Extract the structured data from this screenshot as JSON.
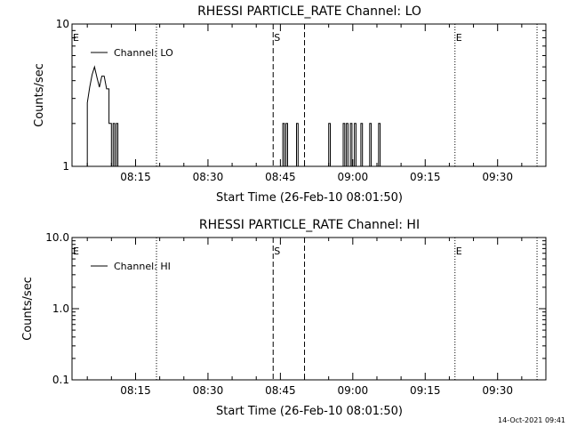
{
  "footer": {
    "timestamp": "14-Oct-2021 09:41"
  },
  "colors": {
    "foreground": "#000000",
    "background": "#ffffff"
  },
  "chart_data": [
    {
      "type": "line",
      "title": "RHESSI PARTICLE_RATE Channel: LO",
      "xlabel": "Start Time (26-Feb-10 08:01:50)",
      "ylabel": "Counts/sec",
      "y_scale": "log",
      "xlim": [
        "08:01:50",
        "09:40:00"
      ],
      "ylim": [
        1,
        10
      ],
      "x_ticks": [
        "08:15",
        "08:30",
        "08:45",
        "09:00",
        "09:15",
        "09:30"
      ],
      "y_ticks": [
        "1",
        "10"
      ],
      "legend": {
        "entries": [
          "Channel: LO"
        ],
        "placement": "top-left"
      },
      "markers": [
        {
          "label": "E",
          "time": "08:01:50",
          "style": "none"
        },
        {
          "label": "",
          "time": "08:19:20",
          "style": "dotted"
        },
        {
          "label": "S",
          "time": "08:43:30",
          "style": "dashed"
        },
        {
          "label": "",
          "time": "08:50:00",
          "style": "dashed"
        },
        {
          "label": "E",
          "time": "09:21:10",
          "style": "dotted"
        },
        {
          "label": "",
          "time": "09:38:10",
          "style": "dotted"
        }
      ],
      "series": [
        {
          "name": "Channel: LO",
          "points": [
            [
              "08:05:00",
              1
            ],
            [
              "08:05:00",
              2.8
            ],
            [
              "08:05:30",
              3.6
            ],
            [
              "08:06:00",
              4.4
            ],
            [
              "08:06:30",
              5.0
            ],
            [
              "08:07:00",
              4.2
            ],
            [
              "08:07:30",
              3.6
            ],
            [
              "08:08:00",
              4.3
            ],
            [
              "08:08:30",
              4.3
            ],
            [
              "08:09:00",
              3.5
            ],
            [
              "08:09:30",
              3.5
            ],
            [
              "08:09:30",
              2.0
            ],
            [
              "08:10:00",
              2.0
            ],
            [
              "08:10:00",
              1
            ],
            [
              "08:10:20",
              1
            ],
            [
              "08:10:20",
              2.0
            ],
            [
              "08:10:40",
              2.0
            ],
            [
              "08:10:40",
              1
            ],
            [
              "08:11:00",
              1
            ],
            [
              "08:11:00",
              2.0
            ],
            [
              "08:11:20",
              2.0
            ],
            [
              "08:11:20",
              1
            ],
            [
              "08:45:30",
              1
            ],
            [
              "08:45:30",
              2.0
            ],
            [
              "08:45:50",
              2.0
            ],
            [
              "08:45:50",
              1
            ],
            [
              "08:46:10",
              1
            ],
            [
              "08:46:10",
              2.0
            ],
            [
              "08:46:30",
              2.0
            ],
            [
              "08:46:30",
              1
            ],
            [
              "08:48:20",
              1
            ],
            [
              "08:48:20",
              2.0
            ],
            [
              "08:48:40",
              2.0
            ],
            [
              "08:48:40",
              1
            ],
            [
              "08:55:00",
              1
            ],
            [
              "08:55:00",
              2.0
            ],
            [
              "08:55:20",
              2.0
            ],
            [
              "08:55:20",
              1
            ],
            [
              "08:58:00",
              1
            ],
            [
              "08:58:00",
              2.0
            ],
            [
              "08:58:20",
              2.0
            ],
            [
              "08:58:20",
              1
            ],
            [
              "08:58:40",
              1
            ],
            [
              "08:58:40",
              2.0
            ],
            [
              "08:59:00",
              2.0
            ],
            [
              "08:59:00",
              1
            ],
            [
              "08:59:30",
              1
            ],
            [
              "08:59:30",
              2.0
            ],
            [
              "08:59:50",
              2.0
            ],
            [
              "08:59:50",
              1
            ],
            [
              "09:00:20",
              1
            ],
            [
              "09:00:20",
              2.0
            ],
            [
              "09:00:40",
              2.0
            ],
            [
              "09:00:40",
              1
            ],
            [
              "09:01:40",
              1
            ],
            [
              "09:01:40",
              2.0
            ],
            [
              "09:02:00",
              2.0
            ],
            [
              "09:02:00",
              1
            ],
            [
              "09:03:30",
              1
            ],
            [
              "09:03:30",
              2.0
            ],
            [
              "09:03:50",
              2.0
            ],
            [
              "09:03:50",
              1
            ],
            [
              "09:05:20",
              1
            ],
            [
              "09:05:20",
              2.0
            ],
            [
              "09:05:40",
              2.0
            ],
            [
              "09:05:40",
              1
            ]
          ]
        }
      ]
    },
    {
      "type": "line",
      "title": "RHESSI PARTICLE_RATE Channel: HI",
      "xlabel": "Start Time (26-Feb-10 08:01:50)",
      "ylabel": "Counts/sec",
      "y_scale": "log",
      "xlim": [
        "08:01:50",
        "09:40:00"
      ],
      "ylim": [
        0.1,
        10
      ],
      "x_ticks": [
        "08:15",
        "08:30",
        "08:45",
        "09:00",
        "09:15",
        "09:30"
      ],
      "y_ticks": [
        "0.1",
        "1.0",
        "10.0"
      ],
      "legend": {
        "entries": [
          "Channel: HI"
        ],
        "placement": "top-left"
      },
      "markers": [
        {
          "label": "E",
          "time": "08:01:50",
          "style": "none"
        },
        {
          "label": "",
          "time": "08:19:20",
          "style": "dotted"
        },
        {
          "label": "S",
          "time": "08:43:30",
          "style": "dashed"
        },
        {
          "label": "",
          "time": "08:50:00",
          "style": "dashed"
        },
        {
          "label": "E",
          "time": "09:21:10",
          "style": "dotted"
        },
        {
          "label": "",
          "time": "09:38:10",
          "style": "dotted"
        }
      ],
      "series": [
        {
          "name": "Channel: HI",
          "points": []
        }
      ]
    }
  ]
}
